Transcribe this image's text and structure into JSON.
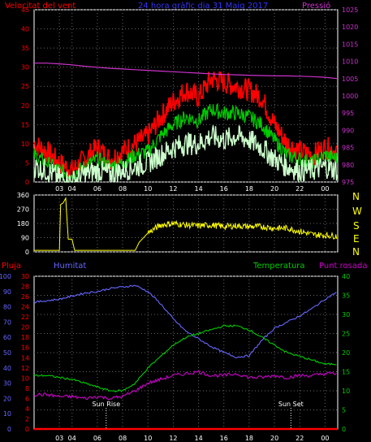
{
  "header": {
    "left_title": "Velocitat del vent",
    "center_title": "24 hora gràfic dia  31 Maig 2017",
    "right_title": "Pressió"
  },
  "colors": {
    "wind_gust": "#ff0000",
    "wind_avg": "#00cc00",
    "wind_min": "#ccffcc",
    "pressure": "#cc33cc",
    "direction": "#ffff00",
    "humidity": "#6666ff",
    "temperature": "#00cc00",
    "dewpoint": "#cc00cc",
    "rain": "#ff0000",
    "axis": "#ffffff",
    "grid": "#666666"
  },
  "labels": {
    "compass": [
      "N",
      "W",
      "S",
      "E",
      "N"
    ],
    "rain": "Pluja",
    "humidity": "Humitat",
    "temperature": "Temperatura",
    "dewpoint": "Punt rosada",
    "sunrise": "Sun Rise",
    "sunset": "Sun Set"
  },
  "chart_data": [
    {
      "type": "line",
      "panel": "wind",
      "x_ticks": [
        "03",
        "04",
        "06",
        "08",
        "10",
        "12",
        "14",
        "16",
        "18",
        "20",
        "22",
        "00"
      ],
      "y_left_ticks": [
        "0",
        "5",
        "10",
        "15",
        "20",
        "25",
        "30",
        "35",
        "40",
        "45"
      ],
      "y_right_ticks": [
        "975",
        "980",
        "985",
        "990",
        "995",
        "1000",
        "1005",
        "1010",
        "1015",
        "1020",
        "1025"
      ],
      "ylim_left": [
        0,
        45
      ],
      "ylim_right": [
        975,
        1025
      ],
      "x_hours": [
        0,
        1,
        2,
        3,
        4,
        5,
        6,
        7,
        8,
        9,
        10,
        11,
        12,
        13,
        14,
        15,
        16,
        17,
        18,
        19,
        20,
        21,
        22,
        23,
        24
      ],
      "series": [
        {
          "name": "Velocitat del vent",
          "role": "gust",
          "values": [
            10,
            8,
            5,
            3,
            6,
            9,
            6,
            8,
            10,
            12,
            17,
            21,
            24,
            22,
            27,
            26,
            25,
            24,
            22,
            15,
            10,
            8,
            7,
            9,
            8
          ]
        },
        {
          "name": "avg",
          "role": "avg",
          "values": [
            7,
            5,
            3,
            2,
            4,
            6,
            4,
            5,
            7,
            8,
            12,
            15,
            17,
            16,
            19,
            18,
            18,
            17,
            15,
            11,
            7,
            6,
            5,
            7,
            6
          ]
        },
        {
          "name": "min",
          "role": "min",
          "values": [
            4,
            3,
            1,
            0,
            2,
            3,
            2,
            3,
            4,
            5,
            7,
            9,
            10,
            10,
            12,
            11,
            12,
            11,
            9,
            6,
            4,
            3,
            3,
            4,
            3
          ]
        },
        {
          "name": "Pressió",
          "role": "pressure",
          "values": [
            1009.5,
            1009.5,
            1009.3,
            1009.0,
            1008.6,
            1008.3,
            1008.0,
            1007.8,
            1007.6,
            1007.4,
            1007.2,
            1007.0,
            1006.8,
            1006.6,
            1006.4,
            1006.2,
            1006.1,
            1006.0,
            1005.9,
            1005.8,
            1005.8,
            1005.7,
            1005.6,
            1005.4,
            1005.0
          ]
        }
      ]
    },
    {
      "type": "line",
      "panel": "direction",
      "y_left_ticks": [
        "0",
        "90",
        "180",
        "270",
        "360"
      ],
      "ylim": [
        0,
        360
      ],
      "x_hours": [
        0,
        1,
        2,
        2.1,
        2.3,
        2.5,
        2.7,
        3,
        3.2,
        4,
        5,
        6,
        7,
        8,
        8.3,
        9,
        10,
        11,
        12,
        13,
        14,
        15,
        16,
        17,
        18,
        19,
        20,
        21,
        22,
        23,
        24
      ],
      "values": [
        10,
        10,
        10,
        300,
        310,
        340,
        80,
        80,
        10,
        10,
        10,
        10,
        10,
        10,
        60,
        120,
        170,
        180,
        170,
        165,
        170,
        160,
        165,
        160,
        160,
        150,
        150,
        130,
        110,
        105,
        100
      ]
    },
    {
      "type": "line",
      "panel": "temperature",
      "x_ticks": [
        "03",
        "04",
        "06",
        "08",
        "10",
        "12",
        "14",
        "16",
        "18",
        "20",
        "22",
        "00"
      ],
      "y_rain_ticks": [
        "0",
        "10",
        "20",
        "30",
        "40",
        "50",
        "60",
        "70",
        "80",
        "90",
        "100"
      ],
      "y_hum_ticks": [
        "0",
        "2",
        "4",
        "6",
        "8",
        "10",
        "12",
        "14",
        "16",
        "18",
        "20",
        "22",
        "24",
        "26",
        "28",
        "30"
      ],
      "y_right_ticks": [
        "0",
        "5",
        "10",
        "15",
        "20",
        "25",
        "30",
        "35",
        "40"
      ],
      "x_hours": [
        0,
        1,
        2,
        3,
        4,
        5,
        6,
        7,
        8,
        9,
        10,
        11,
        12,
        13,
        14,
        15,
        16,
        17,
        18,
        19,
        20,
        21,
        22,
        23,
        24
      ],
      "sunrise_hour": 6.7,
      "sunset_hour": 21.3,
      "series": [
        {
          "name": "Humitat",
          "values": [
            83,
            84,
            85,
            87,
            89,
            90,
            92,
            93,
            94,
            90,
            82,
            72,
            64,
            59,
            54,
            50,
            47,
            48,
            58,
            66,
            70,
            74,
            79,
            85,
            90
          ]
        },
        {
          "name": "Temperatura",
          "values": [
            14,
            14,
            13.5,
            13,
            12,
            11,
            10,
            10,
            12,
            16,
            19,
            22,
            24,
            25,
            26,
            27,
            27,
            26,
            24,
            22,
            20,
            19,
            18,
            17,
            17
          ]
        },
        {
          "name": "Punt rosada",
          "values": [
            9,
            9,
            8.5,
            8.5,
            8,
            8.5,
            8,
            8.5,
            10,
            12,
            13,
            14,
            14.5,
            15,
            14,
            14,
            14.5,
            13.5,
            13.5,
            14,
            13.5,
            14,
            14,
            14.5,
            14.5
          ]
        },
        {
          "name": "Pluja",
          "values": [
            0,
            0,
            0,
            0,
            0,
            0,
            0,
            0,
            0,
            0,
            0,
            0,
            0,
            0,
            0,
            0,
            0,
            0,
            0,
            0,
            0,
            0,
            0,
            0,
            0
          ]
        }
      ]
    }
  ]
}
